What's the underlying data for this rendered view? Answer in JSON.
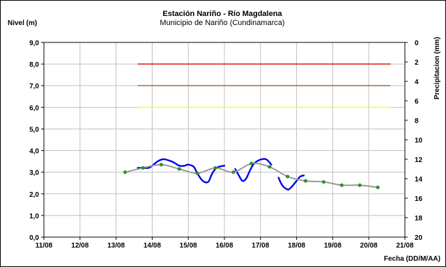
{
  "chart_data": {
    "type": "line",
    "title": "Estación Nariño  - Río Magdalena",
    "subtitle": "Municipio de Nariño (Cundinamarca)",
    "ylabel": "Nivel (m)",
    "y2label": "Precipitacion (mm)",
    "xlabel": "Fecha (DD/M/AA)",
    "x_ticks": [
      "11/08",
      "12/08",
      "13/08",
      "14/08",
      "15/08",
      "16/08",
      "17/08",
      "18/08",
      "19/08",
      "20/08",
      "21/08"
    ],
    "y_ticks": [
      "0,0",
      "1,0",
      "2,0",
      "3,0",
      "4,0",
      "5,0",
      "6,0",
      "7,0",
      "8,0",
      "9,0"
    ],
    "y2_ticks": [
      "0",
      "2",
      "4",
      "6",
      "8",
      "10",
      "12",
      "14",
      "16",
      "18",
      "20"
    ],
    "xlim": [
      0,
      10
    ],
    "ylim": [
      0,
      9
    ],
    "y2lim": [
      20,
      0
    ],
    "grid": true,
    "thresholds": [
      {
        "value": 8.0,
        "color": "#e00000",
        "x_start": 2.6,
        "x_end": 9.6
      },
      {
        "value": 7.0,
        "color": "#996633",
        "x_start": 2.6,
        "x_end": 9.6
      },
      {
        "value": 6.0,
        "color": "#ffff00",
        "x_start": 2.6,
        "x_end": 9.6
      }
    ],
    "series": [
      {
        "color": "#0000ee",
        "style": "observed",
        "segments": [
          [
            [
              2.6,
              3.2
            ],
            [
              2.75,
              3.2
            ],
            [
              2.9,
              3.2
            ],
            [
              3.0,
              3.3
            ],
            [
              3.15,
              3.5
            ],
            [
              3.3,
              3.6
            ],
            [
              3.45,
              3.55
            ],
            [
              3.6,
              3.45
            ],
            [
              3.75,
              3.3
            ],
            [
              3.9,
              3.3
            ],
            [
              4.0,
              3.35
            ],
            [
              4.15,
              3.25
            ],
            [
              4.25,
              2.95
            ],
            [
              4.4,
              2.6
            ],
            [
              4.55,
              2.55
            ],
            [
              4.65,
              2.9
            ],
            [
              4.75,
              3.15
            ],
            [
              4.85,
              3.25
            ],
            [
              5.0,
              3.3
            ]
          ],
          [
            [
              5.3,
              3.15
            ],
            [
              5.4,
              2.85
            ],
            [
              5.5,
              2.6
            ],
            [
              5.6,
              2.7
            ],
            [
              5.7,
              3.05
            ],
            [
              5.8,
              3.35
            ],
            [
              5.95,
              3.55
            ],
            [
              6.15,
              3.6
            ],
            [
              6.3,
              3.35
            ]
          ],
          [
            [
              6.5,
              2.75
            ],
            [
              6.6,
              2.4
            ],
            [
              6.75,
              2.2
            ],
            [
              6.85,
              2.3
            ],
            [
              7.0,
              2.6
            ],
            [
              7.1,
              2.8
            ],
            [
              7.2,
              2.85
            ]
          ]
        ]
      },
      {
        "color": "#999999",
        "style": "smoothed",
        "points": [
          [
            2.25,
            3.0
          ],
          [
            2.75,
            3.2
          ],
          [
            3.25,
            3.35
          ],
          [
            3.75,
            3.15
          ],
          [
            4.25,
            2.95
          ],
          [
            4.75,
            3.2
          ],
          [
            5.25,
            3.0
          ],
          [
            5.75,
            3.4
          ],
          [
            6.25,
            3.25
          ],
          [
            6.75,
            2.8
          ],
          [
            7.25,
            2.6
          ],
          [
            7.75,
            2.55
          ],
          [
            8.25,
            2.4
          ],
          [
            8.75,
            2.4
          ],
          [
            9.25,
            2.3
          ]
        ]
      }
    ]
  }
}
